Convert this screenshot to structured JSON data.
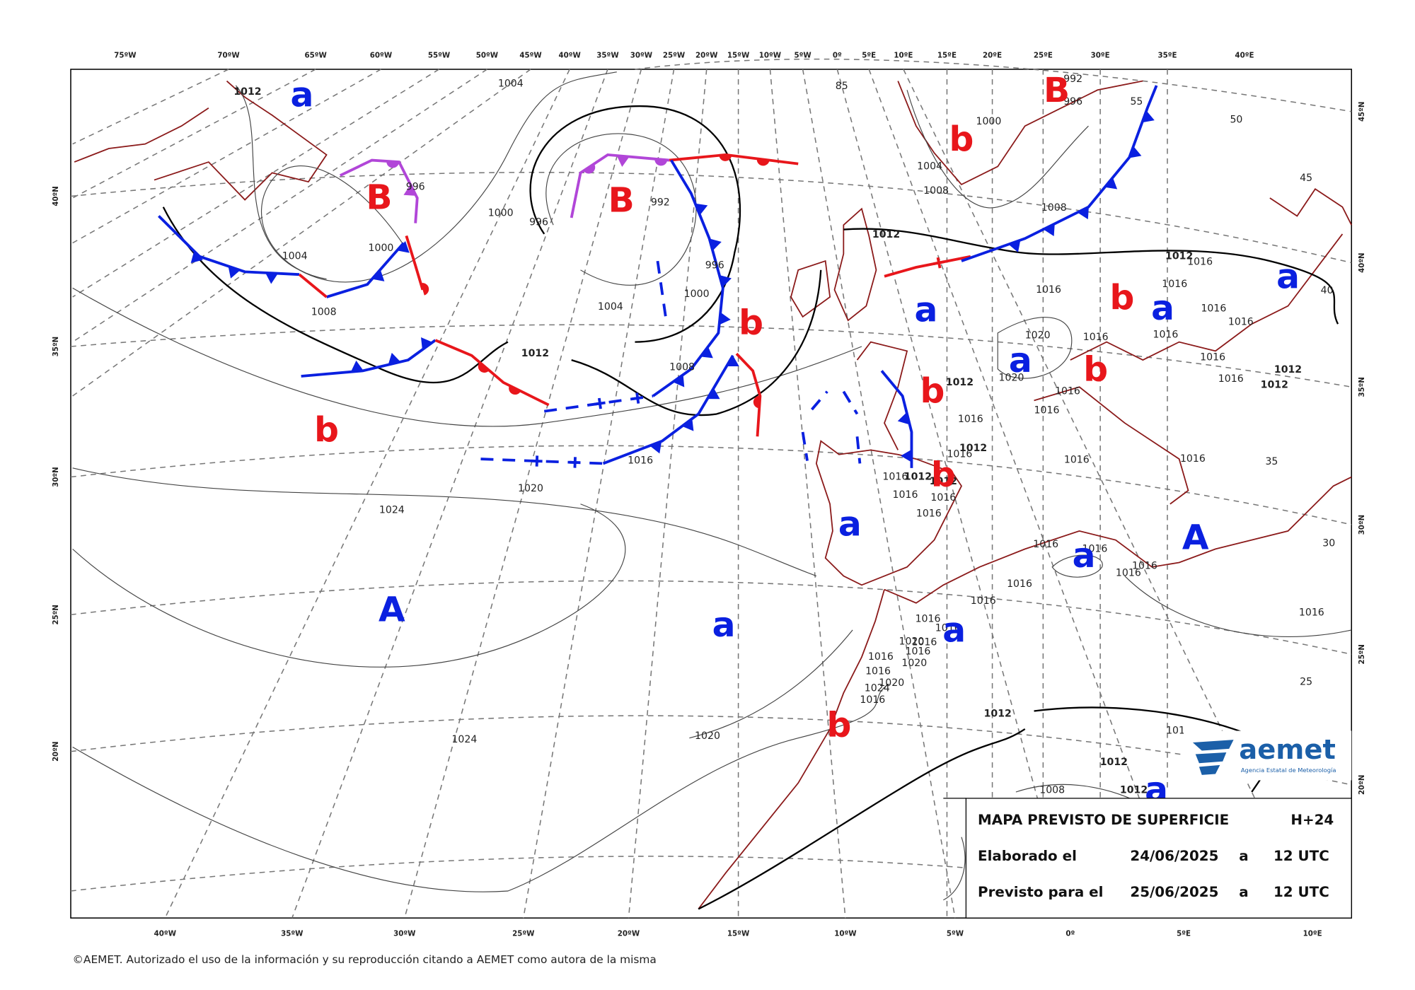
{
  "top_axis_labels": [
    "75ºW",
    "70ºW",
    "65ºW",
    "60ºW",
    "55ºW",
    "50ºW",
    "45ºW",
    "40ºW",
    "35ºW",
    "30ºW",
    "25ºW",
    "20ºW",
    "15ºW",
    "10ºW",
    "5ºW",
    "0º",
    "5ºE",
    "10ºE",
    "15ºE",
    "20ºE",
    "25ºE",
    "30ºE",
    "35ºE",
    "40ºE"
  ],
  "bottom_axis_labels": [
    "40ºW",
    "35ºW",
    "30ºW",
    "25ºW",
    "20ºW",
    "15ºW",
    "10ºW",
    "5ºW",
    "0º",
    "5ºE",
    "10ºE"
  ],
  "left_axis_labels": [
    "40ºN",
    "35ºN",
    "30ºN",
    "25ºN",
    "20ºN"
  ],
  "right_axis_labels": [
    "45ºN",
    "40ºN",
    "35ºN",
    "30ºN",
    "25ºN",
    "20ºN"
  ],
  "pressure_centers": [
    "a",
    "B",
    "b",
    "B",
    "B",
    "a",
    "b",
    "a",
    "a",
    "b",
    "a",
    "b",
    "b",
    "b",
    "b",
    "a",
    "A",
    "a",
    "A",
    "a",
    "a",
    "b",
    "a"
  ],
  "isobar_labels": [
    1012,
    1004,
    85,
    992,
    996,
    1000,
    55,
    50,
    1004,
    1008,
    996,
    992,
    1000,
    996,
    45,
    1008,
    1012,
    1000,
    1004,
    996,
    1012,
    1016,
    1016,
    40,
    1000,
    1004,
    1008,
    1016,
    1016,
    1016,
    1020,
    1016,
    1016,
    1012,
    1016,
    1012,
    1016,
    1012,
    1020,
    1016,
    1008,
    1012,
    1016,
    1016,
    1012,
    1016,
    1016,
    1016,
    35,
    1016,
    1016,
    1012,
    1012,
    1016,
    1016,
    1016,
    1020,
    1024,
    1016,
    1016,
    1016,
    1016,
    1016,
    1016,
    30,
    1016,
    1016,
    1016,
    1020,
    1016,
    1016,
    1016,
    1020,
    1016,
    1020,
    1024,
    1016,
    25,
    1012,
    1024,
    1020,
    101,
    1012,
    1012,
    1008
  ],
  "info_box": {
    "title": "MAPA PREVISTO DE SUPERFICIE",
    "forecast_hour": "H+24",
    "rows": [
      [
        "Elaborado el",
        "24/06/2025",
        "a",
        "12 UTC"
      ],
      [
        "Previsto para el",
        "25/06/2025",
        "a",
        "12 UTC"
      ]
    ]
  },
  "logo": {
    "name": "aemet",
    "subtitle": "Agencia Estatal de Meteorología"
  },
  "copyright": "©AEMET. Autorizado el uso de la información y su reproducción citando a AEMET como autora de la misma"
}
